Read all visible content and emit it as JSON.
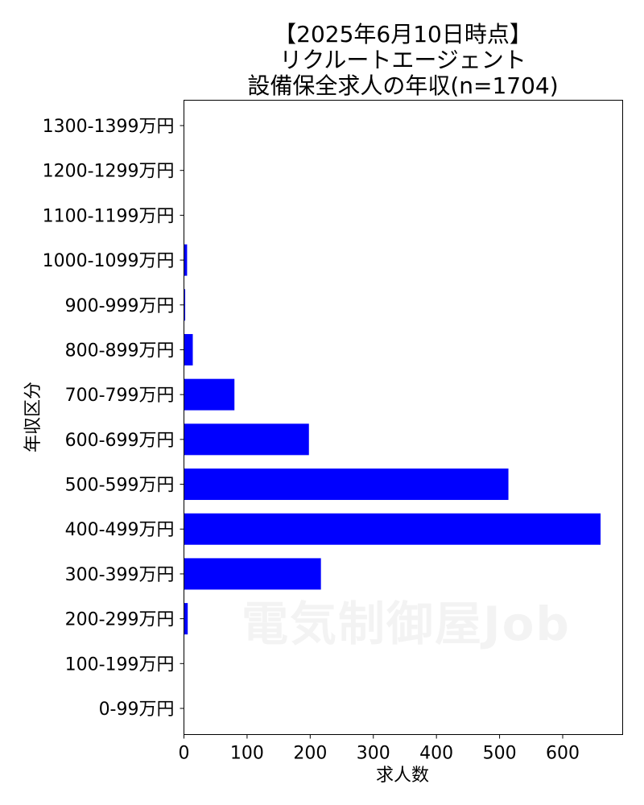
{
  "chart_data": {
    "type": "bar",
    "orientation": "horizontal",
    "title": [
      "【2025年6月10日時点】",
      "リクルートエージェント",
      "設備保全求人の年収(n=1704)"
    ],
    "xlabel": "求人数",
    "ylabel": "年収区分",
    "categories": [
      "0-99万円",
      "100-199万円",
      "200-299万円",
      "300-399万円",
      "400-499万円",
      "500-599万円",
      "600-699万円",
      "700-799万円",
      "800-899万円",
      "900-999万円",
      "1000-1099万円",
      "1100-1199万円",
      "1200-1299万円",
      "1300-1399万円"
    ],
    "values": [
      0,
      0,
      6,
      217,
      660,
      514,
      198,
      80,
      14,
      2,
      5,
      0,
      0,
      0
    ],
    "xlim": [
      0,
      695
    ],
    "xticks": [
      0,
      100,
      200,
      300,
      400,
      500,
      600
    ],
    "bar_color": "#0000ff",
    "grid": false,
    "legend": "none"
  },
  "watermark": "電気制御屋Job"
}
